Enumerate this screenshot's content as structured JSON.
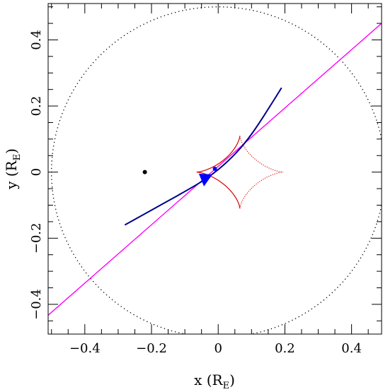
{
  "chart_data": {
    "type": "line",
    "xlabel": "x (R",
    "xlabel_sub": "E",
    "xlabel_close": ")",
    "ylabel": "y (R",
    "ylabel_sub": "E",
    "ylabel_close": ")",
    "xlim": [
      -0.51,
      0.49
    ],
    "ylim": [
      -0.49,
      0.51
    ],
    "xticks": [
      -0.4,
      -0.2,
      0,
      0.2,
      0.4
    ],
    "yticks": [
      -0.4,
      -0.2,
      0,
      0.2,
      0.4
    ],
    "xtick_labels": [
      "−0.4",
      "−0.2",
      "0",
      "0.2",
      "0.4"
    ],
    "ytick_labels": [
      "−0.4",
      "−0.2",
      "0",
      "0.2",
      "0.4"
    ],
    "colors": {
      "trajectory": "#ff00ff",
      "source_track": "#00008b",
      "caustic": "#dd0000",
      "arrow": "#0000ff",
      "einstein_ring": "#000000"
    },
    "trajectory_line": {
      "x": [
        -0.51,
        0.49
      ],
      "y": [
        -0.433,
        0.45
      ]
    },
    "source_track": {
      "x": [
        -0.28,
        -0.2,
        -0.12,
        -0.06,
        -0.02,
        0.02,
        0.06,
        0.1,
        0.14,
        0.19
      ],
      "y": [
        -0.16,
        -0.115,
        -0.07,
        -0.035,
        -0.008,
        0.025,
        0.065,
        0.115,
        0.175,
        0.255
      ]
    },
    "caustic": {
      "center": [
        0.065,
        0.0
      ],
      "half_width": 0.13,
      "half_height": 0.11
    },
    "einstein_ring": {
      "radius": 0.5,
      "center": [
        0,
        0
      ]
    },
    "lens_points": [
      {
        "x": -0.22,
        "y": 0.0
      },
      {
        "x": -0.01,
        "y": 0.01
      }
    ],
    "arrow": {
      "tip": [
        -0.058,
        -0.005
      ],
      "base": [
        -0.03,
        -0.025
      ],
      "half_width": 0.022
    }
  }
}
